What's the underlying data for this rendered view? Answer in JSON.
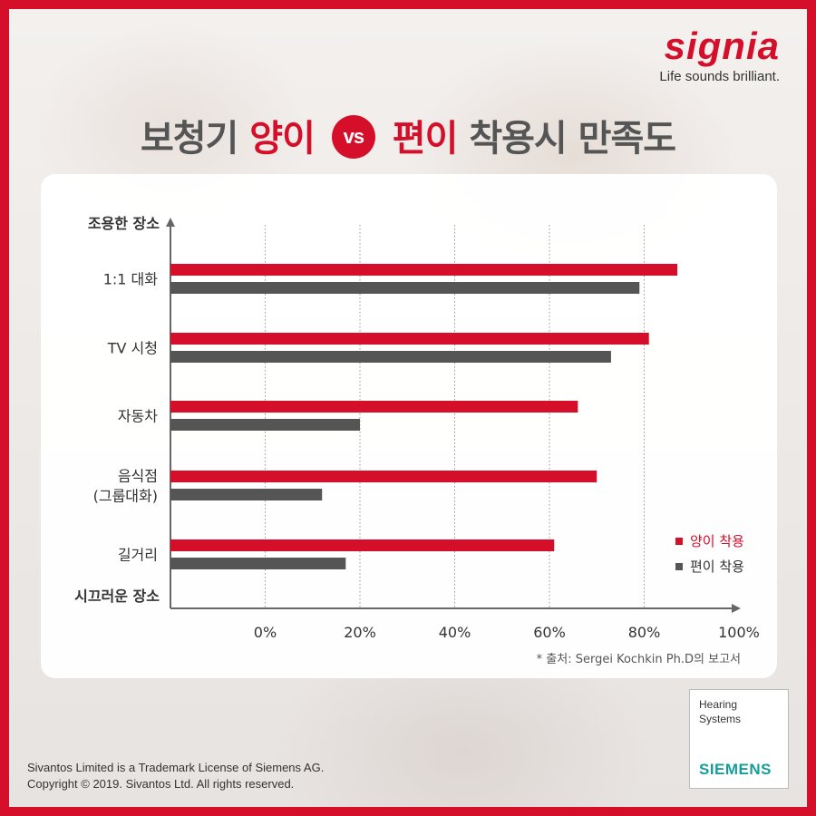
{
  "brand": {
    "logo": "signia",
    "tagline": "Life sounds brilliant."
  },
  "title": {
    "part1": "보청기",
    "red1": "양이",
    "vs": "vs",
    "red2": "편이",
    "part2": "착용시 만족도"
  },
  "colors": {
    "primary": "#d50f2a",
    "secondary": "#555555",
    "siemens": "#179c9c"
  },
  "chart_data": {
    "type": "bar",
    "orientation": "horizontal",
    "y_axis_top_label": "조용한 장소",
    "y_axis_bottom_label": "시끄러운 장소",
    "categories": [
      [
        "1:1 대화"
      ],
      [
        "TV 시청"
      ],
      [
        "자동차"
      ],
      [
        "음식점",
        "(그룹대화)"
      ],
      [
        "길거리"
      ]
    ],
    "x_ticks": [
      "0%",
      "20%",
      "40%",
      "60%",
      "80%",
      "100%"
    ],
    "xlim": [
      -20,
      100
    ],
    "grid": "vertical-dotted",
    "legend_position": "bottom-right",
    "series": [
      {
        "name": "양이 착용",
        "color": "#d50f2a",
        "values": [
          87,
          81,
          66,
          70,
          61
        ]
      },
      {
        "name": "편이 착용",
        "color": "#555555",
        "values": [
          79,
          73,
          20,
          12,
          17
        ]
      }
    ],
    "source_note": "* 출처: Sergei Kochkin Ph.D의 보고서"
  },
  "footer": {
    "line1": "Sivantos Limited is a Trademark License of Siemens AG.",
    "line2": "Copyright © 2019. Sivantos Ltd. All rights reserved."
  },
  "siemens": {
    "line1": "Hearing",
    "line2": "Systems",
    "word": "SIEMENS"
  }
}
